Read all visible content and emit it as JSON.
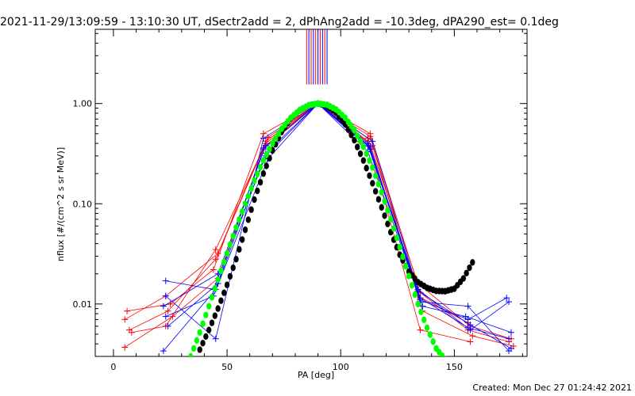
{
  "chart_data": {
    "type": "line",
    "title": "2021-11-29/13:09:59 - 13:10:30 UT, dSectr2add = 2, dPhAng2add = -10.3deg, dPA290_est=  0.1deg",
    "xlabel": "PA [deg]",
    "ylabel": "nflux [#/(cm^2 s sr MeV)]",
    "xlim": [
      -8,
      182
    ],
    "ylim": [
      0.003,
      5.5
    ],
    "y_scale": "log",
    "grid": false,
    "x_ticks": [
      0,
      50,
      100,
      150
    ],
    "x_tick_labels": [
      "0",
      "50",
      "100",
      "150"
    ],
    "y_ticks": [
      0.01,
      0.1,
      1.0
    ],
    "y_tick_labels": [
      "0.01",
      "0.10",
      "1.00"
    ],
    "footer": "Created: Mon Dec 27 01:24:42 2021",
    "colors": {
      "red": "#ff0000",
      "blue": "#0000ff",
      "black": "#000000",
      "green": "#00ff00"
    },
    "series": [
      {
        "color": "red",
        "marker": "plus",
        "x": [
          5,
          23,
          46,
          67,
          90,
          112,
          134,
          157,
          175
        ],
        "y": [
          0.007,
          0.012,
          0.032,
          0.42,
          1.0,
          0.45,
          0.016,
          0.006,
          0.0045
        ]
      },
      {
        "color": "red",
        "marker": "plus",
        "x": [
          6,
          25,
          44,
          66,
          90,
          113,
          135,
          156,
          174
        ],
        "y": [
          0.0085,
          0.01,
          0.022,
          0.5,
          1.0,
          0.5,
          0.013,
          0.0055,
          0.0042
        ]
      },
      {
        "color": "red",
        "marker": "plus",
        "x": [
          7,
          24,
          45,
          68,
          90,
          114,
          136,
          158,
          176
        ],
        "y": [
          0.0055,
          0.0085,
          0.028,
          0.46,
          1.0,
          0.38,
          0.0085,
          0.0048,
          0.0038
        ]
      },
      {
        "color": "red",
        "marker": "plus",
        "x": [
          5,
          26,
          46,
          66,
          90,
          112,
          135,
          157
        ],
        "y": [
          0.0037,
          0.0075,
          0.018,
          0.35,
          1.0,
          0.42,
          0.0055,
          0.0042
        ]
      },
      {
        "color": "red",
        "marker": "plus",
        "x": [
          8,
          23,
          45,
          67,
          90,
          113,
          134,
          156
        ],
        "y": [
          0.0052,
          0.006,
          0.035,
          0.4,
          1.0,
          0.47,
          0.012,
          0.0065
        ]
      },
      {
        "color": "blue",
        "marker": "plus",
        "x": [
          23,
          44,
          67,
          90,
          112,
          135,
          156,
          173
        ],
        "y": [
          0.017,
          0.014,
          0.3,
          1.0,
          0.4,
          0.011,
          0.007,
          0.0115
        ]
      },
      {
        "color": "blue",
        "marker": "plus",
        "x": [
          23,
          45,
          66,
          90,
          113,
          134,
          157,
          174
        ],
        "y": [
          0.012,
          0.0045,
          0.45,
          1.0,
          0.35,
          0.014,
          0.0055,
          0.0105
        ]
      },
      {
        "color": "blue",
        "marker": "plus",
        "x": [
          22,
          46,
          67,
          90,
          112,
          136,
          155,
          175
        ],
        "y": [
          0.0095,
          0.02,
          0.38,
          1.0,
          0.33,
          0.0095,
          0.0075,
          0.0052
        ]
      },
      {
        "color": "blue",
        "marker": "plus",
        "x": [
          23,
          44,
          68,
          90,
          114,
          135,
          156,
          174
        ],
        "y": [
          0.0075,
          0.012,
          0.28,
          1.0,
          0.42,
          0.0115,
          0.0058,
          0.0045
        ]
      },
      {
        "color": "blue",
        "marker": "plus",
        "x": [
          22,
          45,
          66,
          90,
          112,
          134,
          157,
          175
        ],
        "y": [
          0.0034,
          0.014,
          0.36,
          1.0,
          0.38,
          0.0135,
          0.0062,
          0.0036
        ]
      },
      {
        "color": "blue",
        "marker": "plus",
        "x": [
          24,
          46,
          67,
          90,
          113,
          135,
          156,
          174
        ],
        "y": [
          0.006,
          0.016,
          0.32,
          1.0,
          0.37,
          0.0105,
          0.0095,
          0.0034
        ]
      },
      {
        "color": "black",
        "marker": "dot",
        "fit": "pitch-angle fit",
        "x": [
          38,
          42,
          46,
          50,
          54,
          58,
          62,
          66,
          70,
          74,
          78,
          82,
          86,
          90,
          94,
          98,
          102,
          106,
          110,
          114,
          118,
          122,
          126,
          130,
          134,
          138,
          142,
          146,
          150,
          154,
          158
        ],
        "y": [
          0.0035,
          0.0055,
          0.009,
          0.0155,
          0.028,
          0.055,
          0.11,
          0.2,
          0.34,
          0.52,
          0.71,
          0.86,
          0.96,
          1.0,
          0.95,
          0.82,
          0.62,
          0.43,
          0.27,
          0.16,
          0.092,
          0.052,
          0.031,
          0.021,
          0.0165,
          0.0145,
          0.0135,
          0.0134,
          0.0142,
          0.018,
          0.026
        ]
      },
      {
        "color": "green",
        "marker": "dot",
        "fit": "pitch-angle fit",
        "x": [
          34,
          38,
          42,
          46,
          50,
          54,
          58,
          62,
          66,
          70,
          74,
          78,
          82,
          86,
          90,
          94,
          98,
          102,
          106,
          110,
          114,
          118,
          122,
          126,
          130,
          134,
          138,
          142,
          146
        ],
        "y": [
          0.003,
          0.0052,
          0.0095,
          0.0175,
          0.032,
          0.058,
          0.1,
          0.17,
          0.27,
          0.4,
          0.56,
          0.72,
          0.86,
          0.96,
          1.0,
          0.97,
          0.87,
          0.72,
          0.54,
          0.37,
          0.23,
          0.13,
          0.07,
          0.037,
          0.019,
          0.01,
          0.0058,
          0.0036,
          0.0028
        ]
      },
      {
        "color": "mixed",
        "marker": "vertical-lines",
        "note": "vertical lines at top near 90 deg",
        "x": [
          85,
          86,
          87,
          88,
          89,
          90,
          91,
          92,
          93,
          94
        ]
      }
    ]
  }
}
